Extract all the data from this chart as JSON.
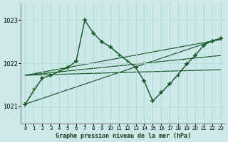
{
  "background_color": "#cce8e8",
  "grid_color": "#b0d4d4",
  "line_color": "#1a5c2a",
  "title": "Graphe pression niveau de la mer (hPa)",
  "xlim": [
    -0.5,
    23.5
  ],
  "ylim": [
    1020.6,
    1023.4
  ],
  "yticks": [
    1021,
    1022,
    1023
  ],
  "xticks": [
    0,
    1,
    2,
    3,
    4,
    5,
    6,
    7,
    8,
    9,
    10,
    11,
    12,
    13,
    14,
    15,
    16,
    17,
    18,
    19,
    20,
    21,
    22,
    23
  ],
  "series_dotted": {
    "x": [
      0,
      1,
      2,
      3,
      4,
      5,
      6,
      7,
      8,
      9,
      10,
      11,
      12,
      13,
      14,
      15,
      16,
      17,
      18,
      19,
      20,
      21,
      22,
      23
    ],
    "y": [
      1021.05,
      1021.4,
      1021.65,
      1021.72,
      1021.82,
      1021.9,
      1022.05,
      1023.0,
      1022.7,
      1022.5,
      1022.38,
      1022.18,
      1022.05,
      1021.9,
      1021.58,
      1021.12,
      1021.32,
      1021.52,
      1021.72,
      1021.98,
      1022.18,
      1022.42,
      1022.52,
      1022.58
    ]
  },
  "series_solid": {
    "x": [
      0,
      2,
      3,
      5,
      6,
      7,
      8,
      9,
      10,
      13,
      14,
      15,
      16,
      17,
      19,
      20,
      21,
      22,
      23
    ],
    "y": [
      1021.05,
      1021.65,
      1021.72,
      1021.9,
      1022.05,
      1023.0,
      1022.7,
      1022.5,
      1022.38,
      1021.9,
      1021.58,
      1021.12,
      1021.32,
      1021.52,
      1021.98,
      1022.18,
      1022.42,
      1022.52,
      1022.58
    ]
  },
  "trend_lines": [
    {
      "x": [
        0,
        23
      ],
      "y": [
        1021.72,
        1022.55
      ]
    },
    {
      "x": [
        0,
        23
      ],
      "y": [
        1021.72,
        1022.18
      ]
    },
    {
      "x": [
        0,
        23
      ],
      "y": [
        1021.72,
        1021.85
      ]
    },
    {
      "x": [
        0,
        23
      ],
      "y": [
        1021.05,
        1022.58
      ]
    }
  ]
}
